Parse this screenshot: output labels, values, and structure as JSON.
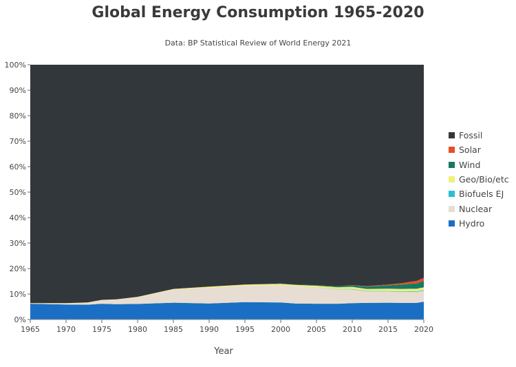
{
  "chart_data": {
    "type": "area",
    "stacked": true,
    "normalized": true,
    "title": "Global Energy Consumption 1965-2020",
    "subtitle": "Data: BP Statistical Review of World Energy 2021",
    "xlabel": "Year",
    "ylabel": "",
    "xlim": [
      1965,
      2020
    ],
    "ylim": [
      0,
      100
    ],
    "x_ticks": [
      "1965",
      "1970",
      "1975",
      "1980",
      "1985",
      "1990",
      "1995",
      "2000",
      "2005",
      "2010",
      "2015",
      "2020"
    ],
    "y_ticks": [
      "0%",
      "10%",
      "20%",
      "30%",
      "40%",
      "50%",
      "60%",
      "70%",
      "80%",
      "90%",
      "100%"
    ],
    "grid": false,
    "legend_position": "right",
    "x": [
      1965,
      1970,
      1973,
      1975,
      1977,
      1980,
      1985,
      1990,
      1995,
      2000,
      2002,
      2005,
      2008,
      2010,
      2012,
      2015,
      2017,
      2018,
      2019,
      2020
    ],
    "series": [
      {
        "name": "Hydro",
        "color": "#1a6fc4",
        "values": [
          6.2,
          5.9,
          5.8,
          6.2,
          6.0,
          6.1,
          6.6,
          6.3,
          6.8,
          6.7,
          6.3,
          6.2,
          6.2,
          6.4,
          6.5,
          6.6,
          6.5,
          6.5,
          6.5,
          7.0
        ]
      },
      {
        "name": "Nuclear",
        "color": "#e8ddd2",
        "values": [
          0.1,
          0.4,
          0.8,
          1.4,
          1.8,
          2.6,
          5.2,
          6.2,
          6.5,
          6.8,
          6.8,
          6.4,
          5.6,
          5.4,
          4.5,
          4.4,
          4.3,
          4.3,
          4.3,
          4.3
        ]
      },
      {
        "name": "Biofuels EJ",
        "color": "#2bbfd0",
        "values": [
          0,
          0,
          0,
          0,
          0,
          0,
          0,
          0,
          0,
          0,
          0,
          0.05,
          0.15,
          0.2,
          0.2,
          0.2,
          0.2,
          0.25,
          0.25,
          0.25
        ]
      },
      {
        "name": "Geo/Bio/etc",
        "color": "#f2ee7a",
        "values": [
          0.1,
          0.1,
          0.1,
          0.1,
          0.1,
          0.2,
          0.2,
          0.4,
          0.4,
          0.5,
          0.5,
          0.6,
          0.7,
          0.8,
          0.8,
          0.9,
          1.0,
          1.0,
          1.0,
          1.1
        ]
      },
      {
        "name": "Wind",
        "color": "#167a62",
        "values": [
          0,
          0,
          0,
          0,
          0,
          0,
          0,
          0,
          0,
          0.1,
          0.1,
          0.2,
          0.4,
          0.6,
          0.9,
          1.3,
          1.7,
          1.9,
          2.1,
          2.5
        ]
      },
      {
        "name": "Solar",
        "color": "#e25027",
        "values": [
          0,
          0,
          0,
          0,
          0,
          0,
          0,
          0,
          0,
          0,
          0,
          0,
          0,
          0.1,
          0.2,
          0.3,
          0.6,
          0.8,
          1.0,
          1.2
        ]
      },
      {
        "name": "Fossil",
        "color": "#32373b",
        "values": [
          93.6,
          93.6,
          93.3,
          92.3,
          92.1,
          91.1,
          88.0,
          87.1,
          86.3,
          85.9,
          86.3,
          86.55,
          86.95,
          86.5,
          86.9,
          86.3,
          85.7,
          85.25,
          84.85,
          83.65
        ]
      }
    ]
  }
}
